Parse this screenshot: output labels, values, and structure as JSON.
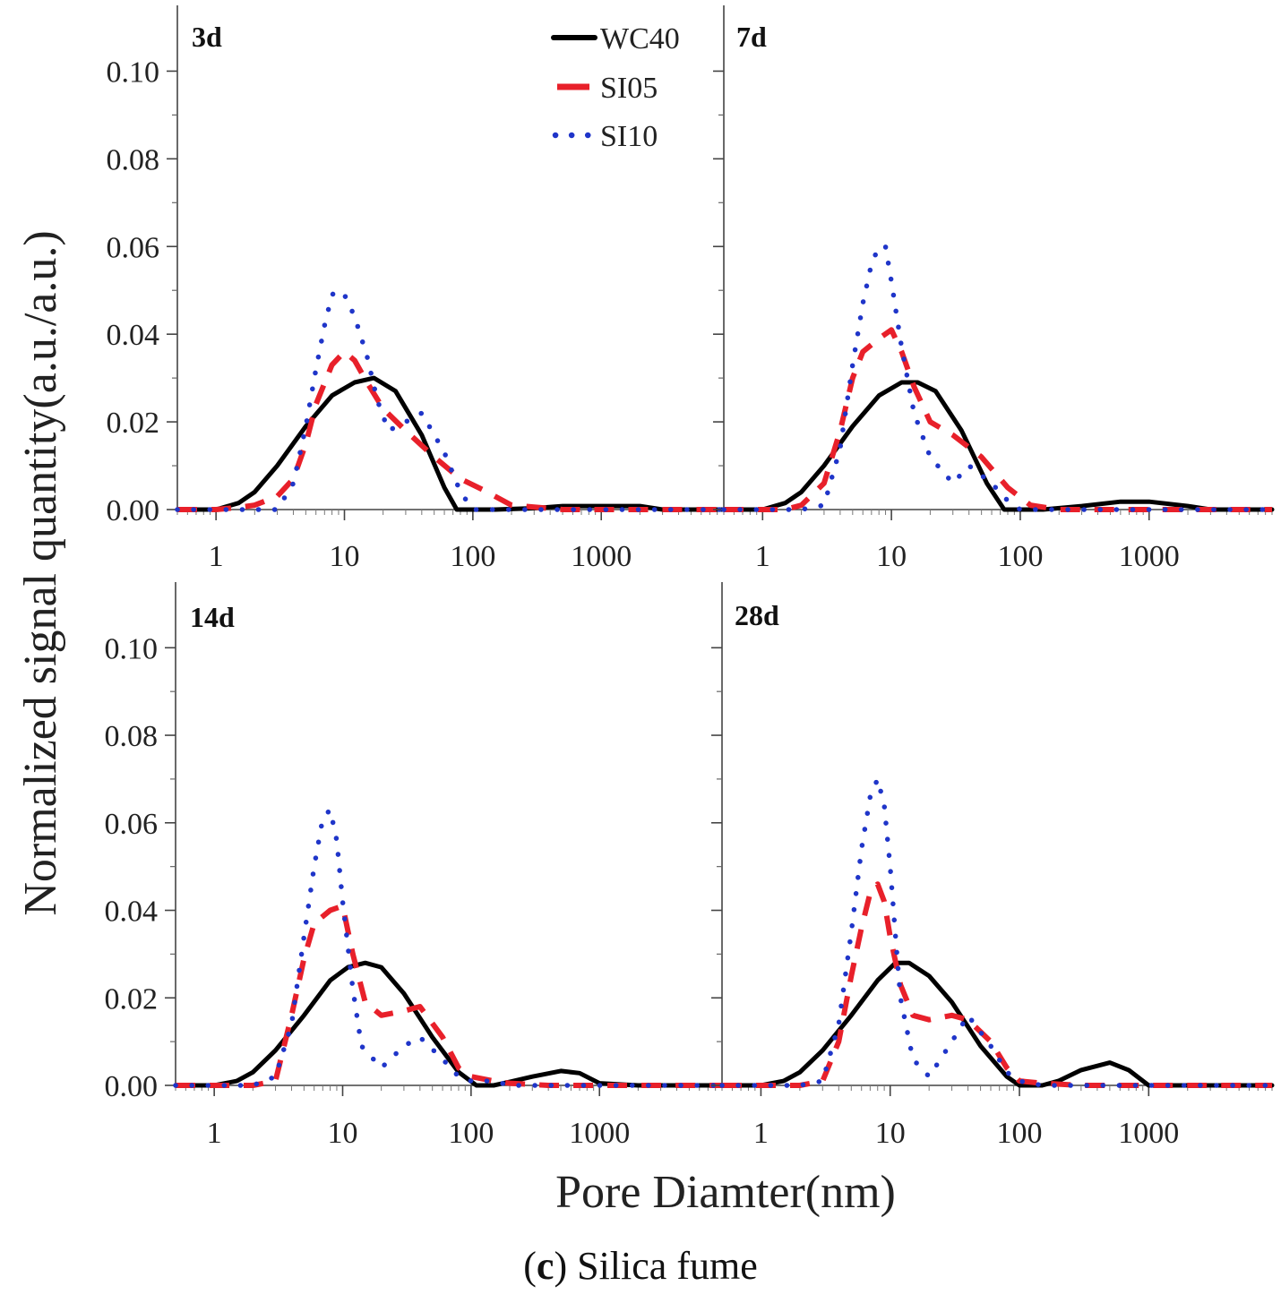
{
  "figure": {
    "ylabel": "Normalized signal quantity(a.u./a.u.)",
    "xlabel": "Pore Diamter(nm)",
    "caption_letter": "c",
    "caption_text": "Silica fume"
  },
  "colors": {
    "WC40": "#000000",
    "SI05": "#e8202a",
    "SI10": "#1f35c9"
  },
  "chart_data": [
    {
      "type": "line",
      "panel": "3d",
      "x_scale": "log",
      "xlim": [
        0.5,
        9000
      ],
      "ylim": [
        0,
        0.115
      ],
      "x_ticks": [
        1,
        10,
        100,
        1000
      ],
      "y_ticks": [
        0.0,
        0.02,
        0.04,
        0.06,
        0.08,
        0.1
      ],
      "legend": "top-right",
      "series": [
        {
          "name": "WC40",
          "style": "solid",
          "x": [
            0.5,
            1,
            1.5,
            2,
            3,
            5,
            8,
            12,
            17,
            25,
            40,
            60,
            75,
            90,
            150,
            300,
            500,
            1000,
            2000,
            3000,
            9000
          ],
          "y": [
            0,
            0,
            0.0015,
            0.004,
            0.01,
            0.019,
            0.026,
            0.029,
            0.03,
            0.027,
            0.017,
            0.005,
            0,
            0,
            0,
            0.0003,
            0.0008,
            0.0008,
            0.0008,
            0,
            0
          ]
        },
        {
          "name": "SI05",
          "style": "dashed",
          "x": [
            0.5,
            1,
            1.5,
            2,
            3,
            4,
            5,
            6,
            8,
            10,
            12,
            15,
            20,
            30,
            50,
            80,
            120,
            200,
            500,
            1000,
            2000,
            3000,
            9000
          ],
          "y": [
            0,
            0,
            0.0005,
            0.001,
            0.003,
            0.007,
            0.015,
            0.024,
            0.033,
            0.036,
            0.034,
            0.029,
            0.023,
            0.018,
            0.012,
            0.007,
            0.0045,
            0.001,
            0,
            0,
            0,
            0,
            0
          ]
        },
        {
          "name": "SI10",
          "style": "dotted",
          "x": [
            0.5,
            1,
            2,
            3,
            4,
            5,
            6,
            7,
            8,
            9,
            10,
            12,
            15,
            18,
            22,
            30,
            40,
            60,
            80,
            100,
            200,
            500,
            1000,
            9000
          ],
          "y": [
            0,
            0,
            0,
            0,
            0.006,
            0.019,
            0.032,
            0.042,
            0.049,
            0.05,
            0.049,
            0.044,
            0.035,
            0.025,
            0.018,
            0.02,
            0.022,
            0.013,
            0.004,
            0,
            0,
            0,
            0,
            0
          ]
        }
      ]
    },
    {
      "type": "line",
      "panel": "7d",
      "x_scale": "log",
      "xlim": [
        0.5,
        9000
      ],
      "ylim": [
        0,
        0.115
      ],
      "x_ticks": [
        1,
        10,
        100,
        1000
      ],
      "y_ticks": [
        0.0,
        0.02,
        0.04,
        0.06,
        0.08,
        0.1
      ],
      "series": [
        {
          "name": "WC40",
          "style": "solid",
          "x": [
            0.5,
            1,
            1.5,
            2,
            3,
            5,
            8,
            12,
            16,
            22,
            35,
            55,
            75,
            90,
            150,
            300,
            600,
            1000,
            2000,
            3000,
            9000
          ],
          "y": [
            0,
            0,
            0.0015,
            0.004,
            0.01,
            0.019,
            0.026,
            0.029,
            0.029,
            0.027,
            0.018,
            0.006,
            0,
            0,
            0,
            0.0008,
            0.0018,
            0.0018,
            0.0008,
            0,
            0
          ]
        },
        {
          "name": "SI05",
          "style": "dashed",
          "x": [
            0.5,
            1,
            1.5,
            2,
            3,
            4,
            5,
            6,
            8,
            10,
            12,
            15,
            20,
            30,
            50,
            80,
            120,
            200,
            500,
            1000,
            2000,
            9000
          ],
          "y": [
            0,
            0,
            0,
            0.001,
            0.006,
            0.018,
            0.03,
            0.036,
            0.039,
            0.041,
            0.036,
            0.028,
            0.02,
            0.017,
            0.012,
            0.005,
            0.001,
            0,
            0,
            0,
            0,
            0
          ]
        },
        {
          "name": "SI10",
          "style": "dotted",
          "x": [
            0.5,
            1,
            2,
            3,
            4,
            5,
            6,
            7,
            8,
            9,
            10,
            11,
            12,
            15,
            20,
            30,
            40,
            60,
            80,
            100,
            200,
            9000
          ],
          "y": [
            0,
            0,
            0,
            0.001,
            0.014,
            0.033,
            0.047,
            0.056,
            0.06,
            0.06,
            0.052,
            0.044,
            0.037,
            0.022,
            0.012,
            0.006,
            0.01,
            0.006,
            0.002,
            0,
            0,
            0
          ]
        }
      ]
    },
    {
      "type": "line",
      "panel": "14d",
      "x_scale": "log",
      "xlim": [
        0.5,
        9000
      ],
      "ylim": [
        0,
        0.115
      ],
      "x_ticks": [
        1,
        10,
        100,
        1000
      ],
      "y_ticks": [
        0.0,
        0.02,
        0.04,
        0.06,
        0.08,
        0.1
      ],
      "series": [
        {
          "name": "WC40",
          "style": "solid",
          "x": [
            0.5,
            1,
            1.5,
            2,
            3,
            5,
            8,
            11,
            15,
            20,
            30,
            50,
            80,
            110,
            150,
            200,
            300,
            500,
            700,
            1000,
            2000,
            9000
          ],
          "y": [
            0,
            0,
            0.001,
            0.003,
            0.008,
            0.016,
            0.024,
            0.027,
            0.028,
            0.027,
            0.021,
            0.011,
            0.003,
            0,
            0,
            0.0008,
            0.002,
            0.0033,
            0.0028,
            0.0005,
            0,
            0
          ]
        },
        {
          "name": "SI05",
          "style": "dashed",
          "x": [
            0.5,
            1,
            2,
            3,
            4,
            5,
            6,
            8,
            10,
            12,
            15,
            20,
            30,
            40,
            60,
            80,
            100,
            150,
            200,
            400,
            1000,
            9000
          ],
          "y": [
            0,
            0,
            0,
            0.001,
            0.016,
            0.029,
            0.037,
            0.04,
            0.041,
            0.03,
            0.019,
            0.016,
            0.017,
            0.018,
            0.011,
            0.004,
            0.002,
            0.001,
            0.0005,
            0,
            0,
            0
          ]
        },
        {
          "name": "SI10",
          "style": "dotted",
          "x": [
            0.5,
            1,
            2,
            3,
            4,
            5,
            6,
            7,
            8,
            9,
            10,
            12,
            14,
            20,
            30,
            40,
            60,
            80,
            100,
            150,
            200,
            9000
          ],
          "y": [
            0,
            0,
            0,
            0.002,
            0.014,
            0.034,
            0.05,
            0.061,
            0.063,
            0.056,
            0.042,
            0.022,
            0.009,
            0.004,
            0.009,
            0.011,
            0.006,
            0.002,
            0.001,
            0.001,
            0,
            0
          ]
        }
      ]
    },
    {
      "type": "line",
      "panel": "28d",
      "x_scale": "log",
      "xlim": [
        0.5,
        9000
      ],
      "ylim": [
        0,
        0.115
      ],
      "x_ticks": [
        1,
        10,
        100,
        1000
      ],
      "y_ticks": [
        0.0,
        0.02,
        0.04,
        0.06,
        0.08,
        0.1
      ],
      "series": [
        {
          "name": "WC40",
          "style": "solid",
          "x": [
            0.5,
            1,
            1.5,
            2,
            3,
            5,
            8,
            11,
            14,
            20,
            30,
            50,
            80,
            100,
            150,
            200,
            300,
            500,
            700,
            1000,
            2000,
            9000
          ],
          "y": [
            0,
            0,
            0.001,
            0.003,
            0.008,
            0.016,
            0.024,
            0.028,
            0.028,
            0.025,
            0.019,
            0.009,
            0.002,
            0,
            0,
            0.001,
            0.0035,
            0.0052,
            0.0035,
            0,
            0,
            0
          ]
        },
        {
          "name": "SI05",
          "style": "dashed",
          "x": [
            0.5,
            1,
            2,
            3,
            4,
            5,
            6,
            7,
            8,
            9,
            10,
            12,
            15,
            20,
            30,
            40,
            60,
            80,
            100,
            150,
            300,
            1000,
            9000
          ],
          "y": [
            0,
            0,
            0,
            0.001,
            0.01,
            0.025,
            0.036,
            0.044,
            0.046,
            0.042,
            0.034,
            0.023,
            0.016,
            0.015,
            0.016,
            0.015,
            0.01,
            0.004,
            0.001,
            0.0005,
            0,
            0,
            0
          ]
        },
        {
          "name": "SI10",
          "style": "dotted",
          "x": [
            0.5,
            1,
            2,
            3,
            4,
            5,
            6,
            7,
            8,
            9,
            10,
            11,
            12,
            15,
            20,
            30,
            40,
            60,
            80,
            100,
            150,
            9000
          ],
          "y": [
            0,
            0,
            0,
            0.001,
            0.014,
            0.035,
            0.054,
            0.066,
            0.07,
            0.064,
            0.05,
            0.034,
            0.02,
            0.006,
            0.002,
            0.01,
            0.016,
            0.009,
            0.003,
            0.001,
            0,
            0
          ]
        }
      ]
    }
  ]
}
